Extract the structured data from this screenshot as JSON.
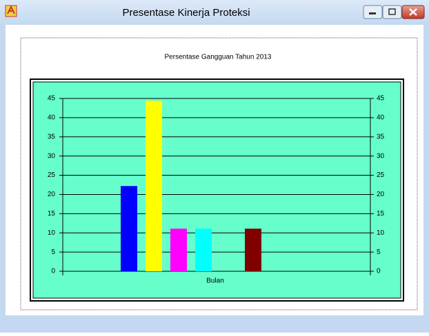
{
  "window": {
    "title": "Presentase Kinerja Proteksi"
  },
  "chart_data": {
    "type": "bar",
    "title": "Persentase Gangguan Tahun 2013",
    "x_label": "Bulan",
    "categories": [
      null,
      null,
      null,
      null,
      null,
      null
    ],
    "values": [
      22.2,
      44.4,
      11.1,
      11.1,
      0,
      11.1
    ],
    "colors": [
      "#0000ff",
      "#ffff00",
      "#ff00ff",
      "#00ffff",
      null,
      "#800000"
    ],
    "ylim": [
      0,
      45
    ],
    "yticks": [
      0,
      5,
      10,
      15,
      20,
      25,
      30,
      35,
      40,
      45
    ],
    "y2lim": [
      0,
      45
    ],
    "y2ticks": [
      0,
      5,
      10,
      15,
      20,
      25,
      30,
      35,
      40,
      45
    ],
    "grid": true,
    "background": "#66ffcc"
  }
}
